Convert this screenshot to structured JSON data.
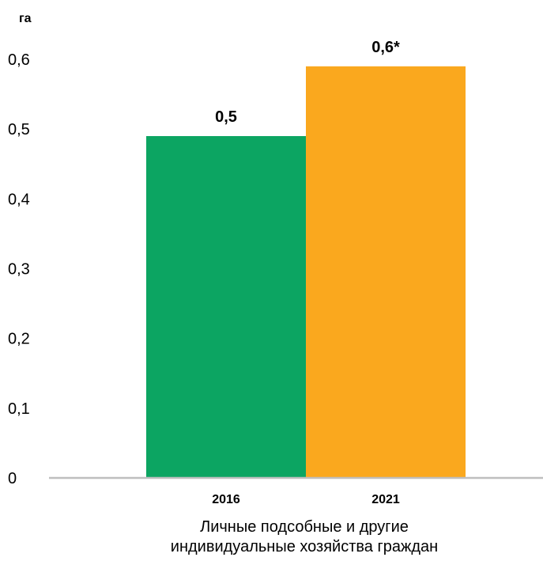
{
  "chart_data": {
    "type": "bar",
    "ylabel": "га",
    "xlabel_lines": [
      "Личные подсобные и другие",
      "индивидуальные хозяйства граждан"
    ],
    "categories": [
      "2016",
      "2021"
    ],
    "values": [
      0.49,
      0.59
    ],
    "data_labels": [
      "0,5",
      "0,6*"
    ],
    "ylim": [
      0,
      0.6
    ],
    "yticks": [
      {
        "value": 0,
        "label": "0"
      },
      {
        "value": 0.1,
        "label": "0,1"
      },
      {
        "value": 0.2,
        "label": "0,2"
      },
      {
        "value": 0.3,
        "label": "0,3"
      },
      {
        "value": 0.4,
        "label": "0,4"
      },
      {
        "value": 0.5,
        "label": "0,5"
      },
      {
        "value": 0.6,
        "label": "0,6"
      }
    ],
    "colors": [
      "#0ca562",
      "#faa81e"
    ],
    "grid": false,
    "legend": "none"
  }
}
